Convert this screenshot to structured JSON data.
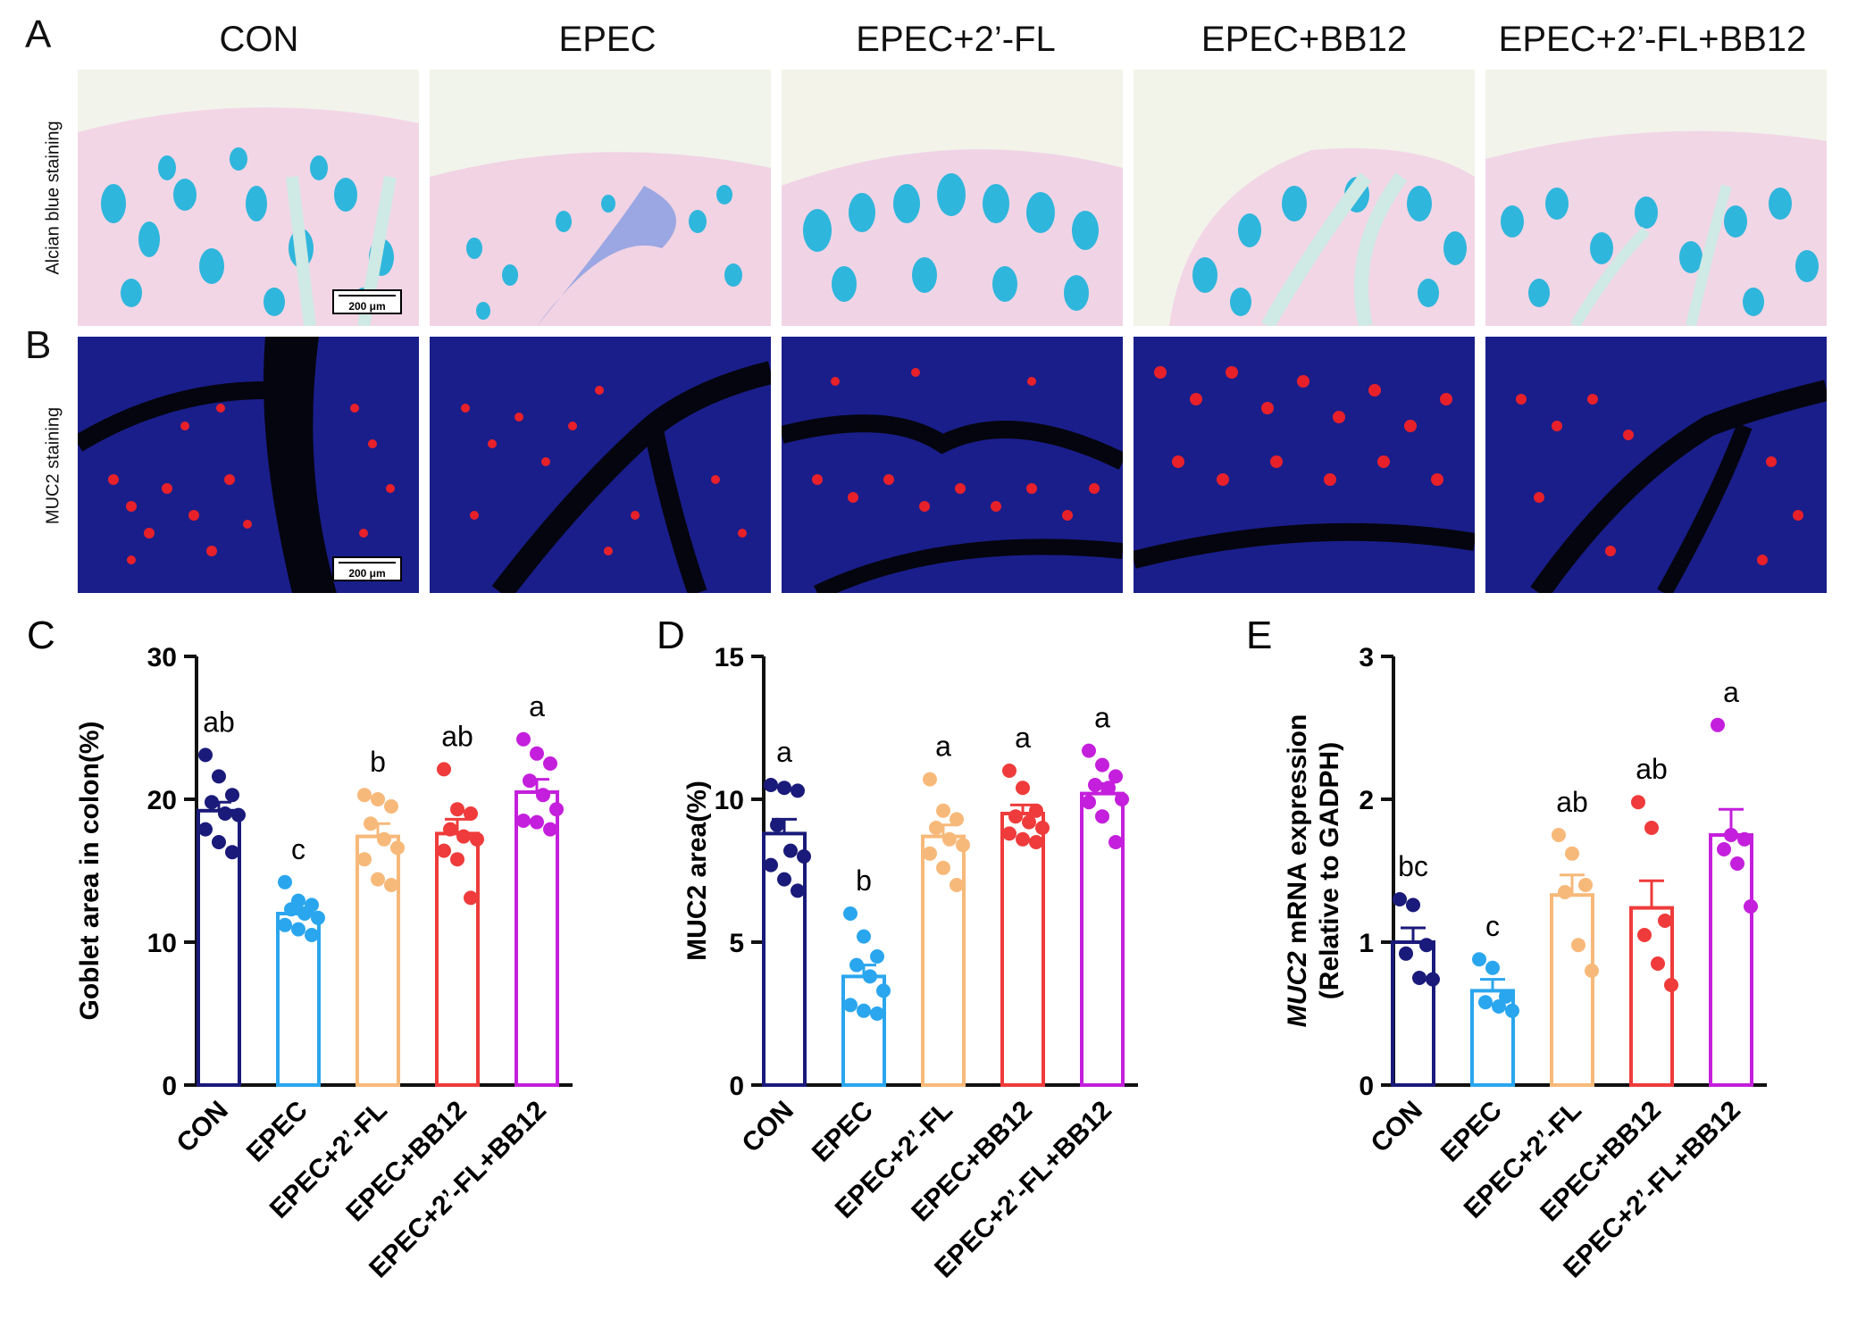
{
  "panel_labels": [
    "A",
    "B",
    "C",
    "D",
    "E"
  ],
  "columns": [
    "CON",
    "EPEC",
    "EPEC+2’-FL",
    "EPEC+BB12",
    "EPEC+2’-FL+BB12"
  ],
  "rows": {
    "alcian": "Alcian blue staining",
    "muc2": "MUC2 staining"
  },
  "scale_bar": "200 μm",
  "colors": {
    "CON": "#1a1a7a",
    "EPEC": "#2aa6ee",
    "EPEC+2’-FL": "#f7b97a",
    "EPEC+BB12": "#ef3b3b",
    "EPEC+2’-FL+BB12": "#c41fdc"
  },
  "chart_data": [
    {
      "type": "bar",
      "panel": "C",
      "ylabel": "Goblet area in colon(%)",
      "ylim": [
        0,
        30
      ],
      "yticks": [
        "0",
        "10",
        "20",
        "30"
      ],
      "categories": [
        "CON",
        "EPEC",
        "EPEC+2’-FL",
        "EPEC+BB12",
        "EPEC+2’-FL+BB12"
      ],
      "values": [
        19.2,
        12.0,
        17.4,
        17.6,
        20.5
      ],
      "sem": [
        0.6,
        0.4,
        0.9,
        1.0,
        0.9
      ],
      "letters": [
        "ab",
        "c",
        "b",
        "ab",
        "a"
      ],
      "points": [
        [
          23.1,
          21.6,
          20.3,
          19.8,
          19.0,
          18.9,
          17.9,
          17.0,
          16.3
        ],
        [
          14.2,
          12.9,
          12.6,
          12.3,
          12.0,
          11.7,
          11.2,
          10.9,
          10.5
        ],
        [
          20.3,
          20.0,
          19.5,
          18.3,
          17.2,
          16.6,
          15.8,
          14.4,
          14.0
        ],
        [
          22.1,
          19.3,
          19.0,
          17.9,
          17.4,
          17.2,
          16.4,
          15.8,
          13.1
        ],
        [
          24.2,
          23.2,
          22.5,
          21.3,
          20.3,
          19.3,
          18.5,
          18.4,
          17.9
        ]
      ]
    },
    {
      "type": "bar",
      "panel": "D",
      "ylabel": "MUC2 area(%)",
      "ylim": [
        0,
        15
      ],
      "yticks": [
        "0",
        "5",
        "10",
        "15"
      ],
      "categories": [
        "CON",
        "EPEC",
        "EPEC+2’-FL",
        "EPEC+BB12",
        "EPEC+2’-FL+BB12"
      ],
      "values": [
        8.8,
        3.8,
        8.7,
        9.5,
        10.2
      ],
      "sem": [
        0.5,
        0.4,
        0.4,
        0.3,
        0.35
      ],
      "letters": [
        "a",
        "b",
        "a",
        "a",
        "a"
      ],
      "points": [
        [
          10.5,
          10.4,
          10.3,
          9.1,
          8.2,
          8.0,
          7.7,
          7.2,
          6.8
        ],
        [
          6.0,
          5.2,
          4.5,
          4.2,
          3.8,
          3.3,
          2.8,
          2.6,
          2.5
        ],
        [
          10.7,
          9.6,
          9.3,
          9.0,
          8.6,
          8.4,
          8.1,
          7.6,
          7.0
        ],
        [
          11.0,
          10.4,
          9.6,
          9.4,
          9.2,
          9.0,
          8.8,
          8.6,
          8.5
        ],
        [
          11.7,
          11.2,
          10.8,
          10.5,
          10.4,
          10.0,
          9.9,
          9.4,
          8.5
        ]
      ]
    },
    {
      "type": "bar",
      "panel": "E",
      "ylabel_prefix": "MUC2",
      "ylabel": " mRNA expression",
      "ylabel2": "(Relative to GADPH)",
      "ylim": [
        0,
        3
      ],
      "yticks": [
        "0",
        "1",
        "2",
        "3"
      ],
      "categories": [
        "CON",
        "EPEC",
        "EPEC+2’-FL",
        "EPEC+BB12",
        "EPEC+2’-FL+BB12"
      ],
      "values": [
        1.0,
        0.66,
        1.33,
        1.24,
        1.75
      ],
      "sem": [
        0.1,
        0.08,
        0.14,
        0.19,
        0.18
      ],
      "letters": [
        "bc",
        "c",
        "ab",
        "ab",
        "a"
      ],
      "points": [
        [
          1.3,
          1.26,
          0.98,
          0.92,
          0.75,
          0.74
        ],
        [
          0.88,
          0.82,
          0.62,
          0.58,
          0.55,
          0.52
        ],
        [
          1.75,
          1.62,
          1.4,
          1.35,
          0.98,
          0.8
        ],
        [
          1.98,
          1.8,
          1.15,
          1.05,
          0.85,
          0.7
        ],
        [
          2.52,
          1.75,
          1.72,
          1.65,
          1.55,
          1.25
        ]
      ]
    }
  ]
}
